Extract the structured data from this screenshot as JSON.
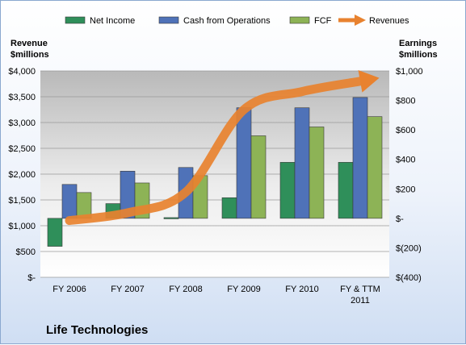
{
  "chart_data": {
    "type": "bar",
    "title": "Life Technologies",
    "categories": [
      [
        "FY 2006"
      ],
      [
        "FY 2007"
      ],
      [
        "FY 2008"
      ],
      [
        "FY 2009"
      ],
      [
        "FY 2010"
      ],
      [
        "FY & TTM",
        "2011"
      ]
    ],
    "left_axis": {
      "label_lines": [
        "Revenue",
        "$millions"
      ],
      "range": [
        0,
        4000
      ],
      "ticks": [
        0,
        500,
        1000,
        1500,
        2000,
        2500,
        3000,
        3500,
        4000
      ],
      "tick_labels": [
        "$-",
        "$500",
        "$1,000",
        "$1,500",
        "$2,000",
        "$2,500",
        "$3,000",
        "$3,500",
        "$4,000"
      ]
    },
    "right_axis": {
      "label_lines": [
        "Earnings",
        "$millions"
      ],
      "range": [
        -400,
        1000
      ],
      "ticks": [
        -400,
        -200,
        0,
        200,
        400,
        600,
        800,
        1000
      ],
      "tick_labels": [
        "$(400)",
        "$(200)",
        "$-",
        "$200",
        "$400",
        "$600",
        "$800",
        "$1,000"
      ]
    },
    "series": [
      {
        "name": "Net Income",
        "axis": "right",
        "color": "#2f8f5a",
        "values": [
          -190,
          100,
          5,
          140,
          380,
          380
        ]
      },
      {
        "name": "Cash from Operations",
        "axis": "right",
        "color": "#4f72b8",
        "values": [
          230,
          320,
          345,
          750,
          750,
          820
        ]
      },
      {
        "name": "FCF",
        "axis": "right",
        "color": "#8db356",
        "values": [
          175,
          240,
          290,
          560,
          620,
          690
        ]
      },
      {
        "name": "Revenues",
        "axis": "left",
        "color": "#e8822f",
        "type": "line",
        "values": [
          1100,
          1250,
          1650,
          3250,
          3600,
          3800
        ]
      }
    ],
    "grid": true,
    "legend": "top"
  }
}
